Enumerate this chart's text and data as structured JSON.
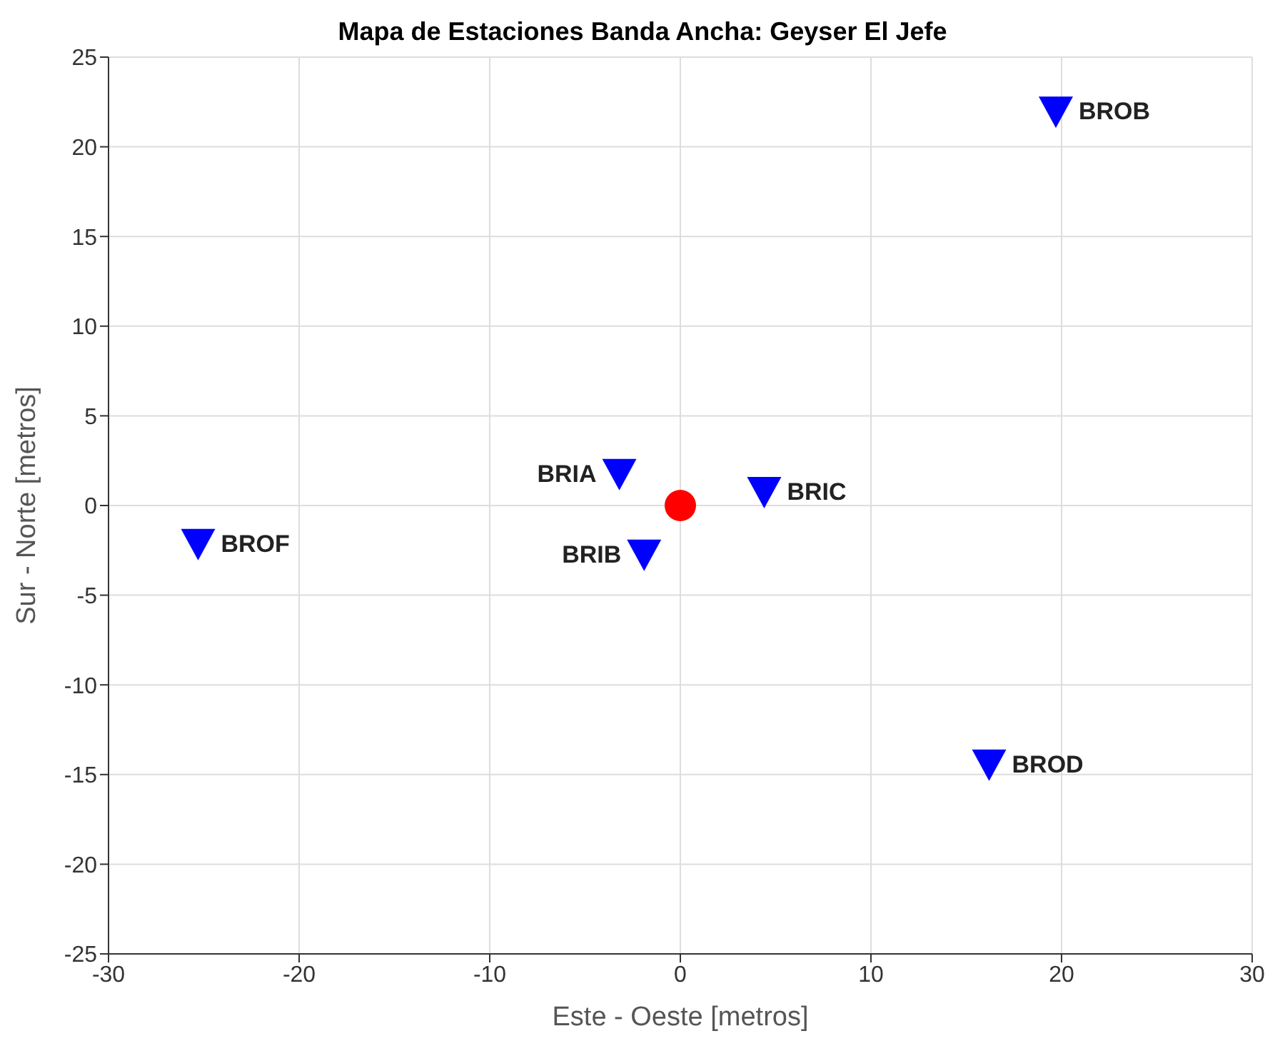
{
  "chart_data": {
    "type": "scatter",
    "title": "Mapa de Estaciones Banda Ancha: Geyser El Jefe",
    "xlabel": "Este - Oeste [metros]",
    "ylabel": "Sur - Norte [metros]",
    "series": [
      {
        "color": "#0000ff",
        "marker": "triangle",
        "x": [
          19.7,
          -3.2,
          4.4,
          -1.9,
          -25.3,
          16.2
        ],
        "values": [
          22.0,
          1.8,
          0.8,
          -2.7,
          -2.1,
          -14.4
        ]
      },
      {
        "color": "#ff0000",
        "marker": "circle",
        "x": [
          0
        ],
        "values": [
          0
        ]
      }
    ],
    "annotations": [
      {
        "text": "BROB",
        "x": 19.7,
        "y": 22.0
      },
      {
        "text": "BRIA",
        "x": -3.2,
        "y": 1.8
      },
      {
        "text": "BRIC",
        "x": 4.4,
        "y": 0.8
      },
      {
        "text": "BRIB",
        "x": -1.9,
        "y": -2.7
      },
      {
        "text": "BROF",
        "x": -25.3,
        "y": -2.1
      },
      {
        "text": "BROD",
        "x": 16.2,
        "y": -14.4
      }
    ],
    "xlim": [
      -30,
      30
    ],
    "xticks": [
      -30,
      -20,
      -10,
      0,
      10,
      20,
      30
    ],
    "ylim": [
      -25,
      25
    ],
    "yticks": [
      -25,
      -20,
      -15,
      -10,
      -5,
      0,
      5,
      10,
      15,
      20,
      25
    ],
    "grid": true,
    "legend": false
  }
}
